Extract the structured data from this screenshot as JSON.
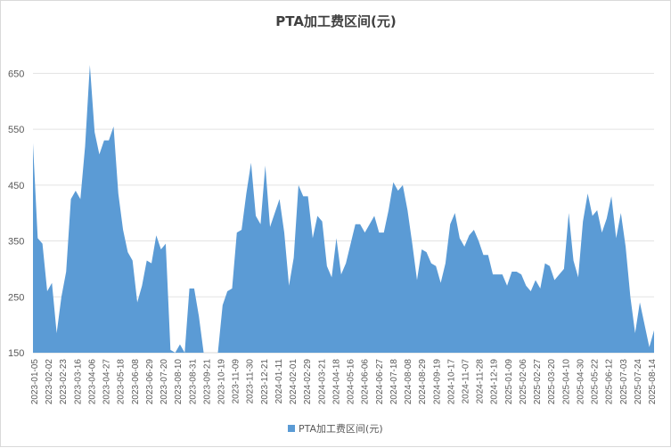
{
  "chart_data": {
    "type": "area",
    "title": "PTA加工费区间(元)",
    "xlabel": "",
    "ylabel": "",
    "ylim": [
      150,
      700
    ],
    "yticks": [
      150,
      250,
      350,
      450,
      550,
      650
    ],
    "grid": true,
    "legend_position": "bottom",
    "color": "#5b9bd5",
    "x_tick_labels": [
      "2023-01-05",
      "2023-02-02",
      "2023-02-23",
      "2023-03-16",
      "2023-04-06",
      "2023-04-27",
      "2023-05-18",
      "2023-06-08",
      "2023-06-29",
      "2023-07-20",
      "2023-08-10",
      "2023-08-31",
      "2023-09-21",
      "2023-10-19",
      "2023-11-09",
      "2023-11-30",
      "2023-12-21",
      "2024-01-11",
      "2024-02-01",
      "2024-02-29",
      "2024-03-21",
      "2024-04-18",
      "2024-05-16",
      "2024-06-06",
      "2024-06-27",
      "2024-07-18",
      "2024-08-08",
      "2024-08-29",
      "2024-09-19",
      "2024-10-17",
      "2024-11-07",
      "2024-11-28",
      "2024-12-19",
      "2025-01-09",
      "2025-02-06",
      "2025-02-27",
      "2025-03-20",
      "2025-04-10",
      "2025-04-30",
      "2025-05-22",
      "2025-06-12",
      "2025-07-03",
      "2025-07-24",
      "2025-08-14"
    ],
    "series": [
      {
        "name": "PTA加工费区间(元)",
        "values": [
          525,
          355,
          345,
          260,
          275,
          185,
          250,
          295,
          425,
          440,
          425,
          520,
          665,
          545,
          505,
          530,
          530,
          555,
          435,
          370,
          330,
          315,
          240,
          270,
          315,
          310,
          360,
          335,
          345,
          155,
          150,
          165,
          150,
          265,
          265,
          215,
          150,
          150,
          150,
          150,
          235,
          260,
          265,
          365,
          370,
          435,
          490,
          395,
          380,
          485,
          375,
          400,
          425,
          365,
          270,
          320,
          450,
          430,
          430,
          355,
          395,
          385,
          305,
          285,
          355,
          290,
          310,
          345,
          380,
          380,
          365,
          380,
          395,
          365,
          365,
          405,
          455,
          440,
          450,
          405,
          345,
          280,
          335,
          330,
          310,
          305,
          275,
          310,
          380,
          400,
          355,
          340,
          360,
          370,
          350,
          325,
          325,
          290,
          290,
          290,
          270,
          295,
          295,
          290,
          270,
          260,
          280,
          265,
          310,
          305,
          280,
          290,
          300,
          400,
          315,
          285,
          385,
          435,
          395,
          405,
          365,
          390,
          430,
          355,
          400,
          340,
          250,
          185,
          240,
          200,
          160,
          190
        ]
      }
    ]
  },
  "legend": {
    "label": "PTA加工费区间(元)"
  }
}
